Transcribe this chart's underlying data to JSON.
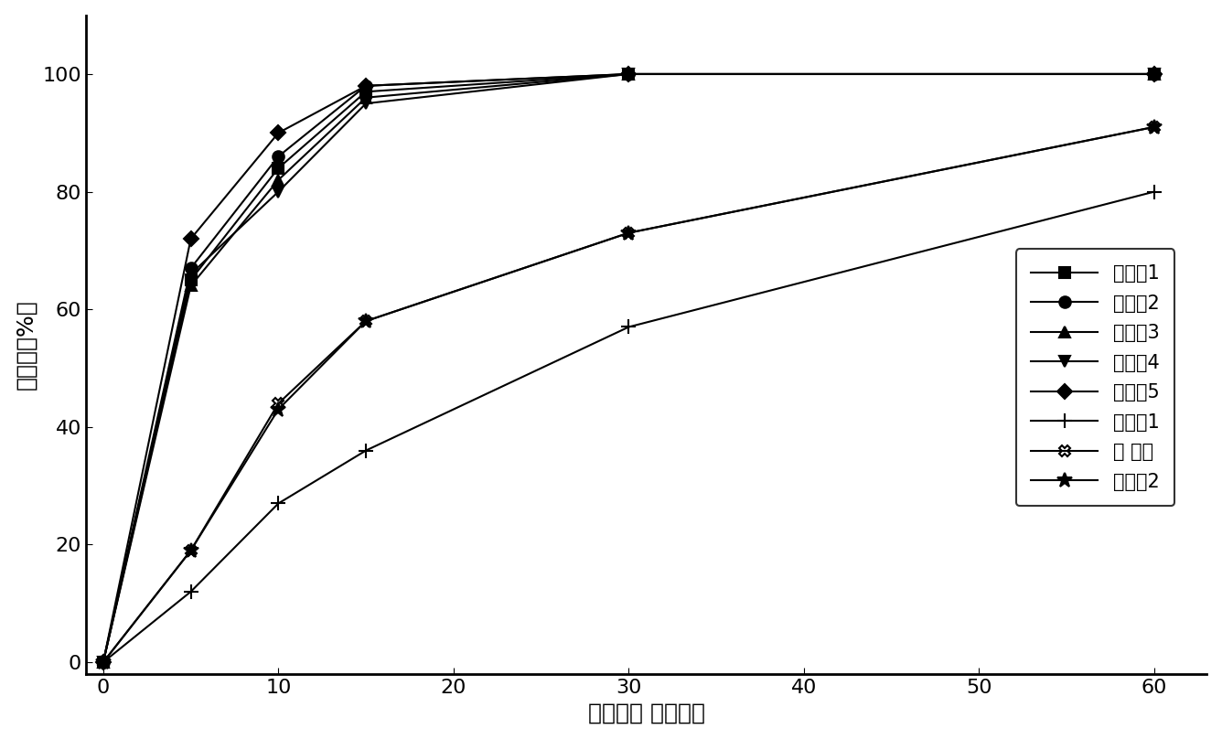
{
  "series": [
    {
      "label": "实施例1",
      "x": [
        0,
        5,
        10,
        15,
        30,
        60
      ],
      "y": [
        0,
        65,
        84,
        97,
        100,
        100
      ],
      "marker": "s",
      "markersize": 8,
      "linewidth": 1.5
    },
    {
      "label": "实施例2",
      "x": [
        0,
        5,
        10,
        15,
        30,
        60
      ],
      "y": [
        0,
        67,
        86,
        98,
        100,
        100
      ],
      "marker": "o",
      "markersize": 9,
      "linewidth": 1.5
    },
    {
      "label": "实施例3",
      "x": [
        0,
        5,
        10,
        15,
        30,
        60
      ],
      "y": [
        0,
        64,
        82,
        96,
        100,
        100
      ],
      "marker": "^",
      "markersize": 8,
      "linewidth": 1.5
    },
    {
      "label": "实施例4",
      "x": [
        0,
        5,
        10,
        15,
        30,
        60
      ],
      "y": [
        0,
        66,
        80,
        95,
        100,
        100
      ],
      "marker": "v",
      "markersize": 8,
      "linewidth": 1.5
    },
    {
      "label": "实施例5",
      "x": [
        0,
        5,
        10,
        15,
        30,
        60
      ],
      "y": [
        0,
        72,
        90,
        98,
        100,
        100
      ],
      "marker": "D",
      "markersize": 8,
      "linewidth": 1.5
    },
    {
      "label": "比较例1",
      "x": [
        0,
        5,
        10,
        15,
        30,
        60
      ],
      "y": [
        0,
        12,
        27,
        36,
        57,
        80
      ],
      "marker": "+",
      "markersize": 11,
      "linewidth": 1.5
    },
    {
      "label": "亚 莫莘",
      "x": [
        0,
        5,
        10,
        15,
        30,
        60
      ],
      "y": [
        0,
        19,
        44,
        58,
        73,
        91
      ],
      "marker": "X",
      "markersize": 9,
      "linewidth": 1.5
    },
    {
      "label": "比较例2",
      "x": [
        0,
        5,
        10,
        15,
        30,
        60
      ],
      "y": [
        0,
        19,
        43,
        58,
        73,
        91
      ],
      "marker": "*",
      "markersize": 12,
      "linewidth": 1.5
    }
  ],
  "xlabel": "溶出时间 （分钟）",
  "ylabel": "溶出度（%）",
  "xlim": [
    -1,
    63
  ],
  "ylim": [
    -2,
    110
  ],
  "xticks": [
    0,
    10,
    20,
    30,
    40,
    50,
    60
  ],
  "yticks": [
    0,
    20,
    40,
    60,
    80,
    100
  ],
  "background_color": "#ffffff",
  "label_font_size": 18,
  "tick_font_size": 16,
  "legend_font_size": 15
}
